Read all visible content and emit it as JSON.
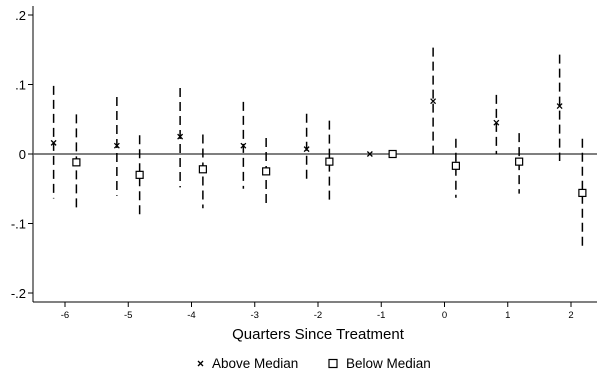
{
  "chart_data": {
    "type": "scatter",
    "title": "",
    "xlabel": "Quarters Since Treatment",
    "ylabel": "",
    "xlim": [
      -6.5,
      2.4
    ],
    "ylim": [
      -0.21,
      0.21
    ],
    "x_ticks": [
      -6,
      -5,
      -4,
      -3,
      -2,
      -1,
      0,
      1,
      2
    ],
    "x_tick_labels": [
      "-6",
      "-5",
      "-4",
      "-3",
      "-2",
      "-1",
      "0",
      "1",
      "2"
    ],
    "y_ticks": [
      0.2,
      0.1,
      0,
      -0.1,
      -0.2
    ],
    "y_tick_labels": [
      ".2",
      ".1",
      "0",
      "-.1",
      "-.2"
    ],
    "zero_line": true,
    "grid": false,
    "legend_position": "bottom",
    "error_bars": "dashed",
    "series": [
      {
        "name": "Above Median",
        "marker": "x",
        "x": [
          -6,
          -5,
          -4,
          -3,
          -2,
          -1,
          0,
          1,
          2
        ],
        "y": [
          0.016,
          0.012,
          0.025,
          0.012,
          0.007,
          0.0,
          0.076,
          0.045,
          0.069
        ],
        "ci_low": [
          -0.064,
          -0.06,
          -0.048,
          -0.05,
          -0.042,
          0.0,
          0.0,
          0.0,
          -0.01
        ],
        "ci_high": [
          0.098,
          0.082,
          0.095,
          0.075,
          0.058,
          0.0,
          0.153,
          0.085,
          0.143
        ]
      },
      {
        "name": "Below Median",
        "marker": "square",
        "x": [
          -6,
          -5,
          -4,
          -3,
          -2,
          -1,
          0,
          1,
          2
        ],
        "y": [
          -0.012,
          -0.03,
          -0.022,
          -0.025,
          -0.011,
          0.0,
          -0.017,
          -0.011,
          -0.056
        ],
        "ci_low": [
          -0.083,
          -0.088,
          -0.078,
          -0.073,
          -0.071,
          0.0,
          -0.063,
          -0.057,
          -0.135
        ],
        "ci_high": [
          0.057,
          0.027,
          0.028,
          0.023,
          0.048,
          0.0,
          0.022,
          0.03,
          0.022
        ]
      }
    ]
  }
}
